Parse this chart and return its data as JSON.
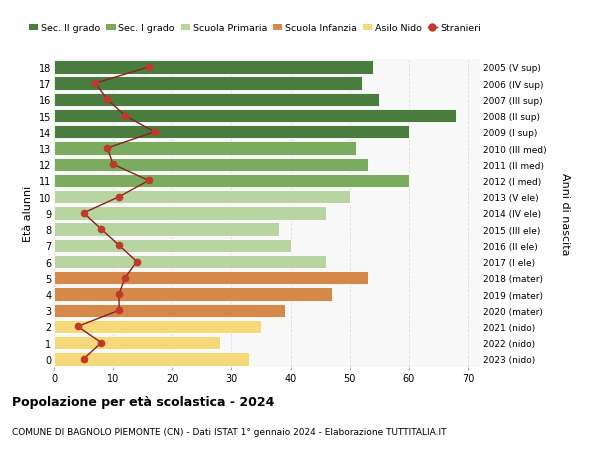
{
  "ages": [
    18,
    17,
    16,
    15,
    14,
    13,
    12,
    11,
    10,
    9,
    8,
    7,
    6,
    5,
    4,
    3,
    2,
    1,
    0
  ],
  "bar_values": [
    54,
    52,
    55,
    68,
    60,
    51,
    53,
    60,
    50,
    46,
    38,
    40,
    46,
    53,
    47,
    39,
    35,
    28,
    33
  ],
  "stranieri": [
    16,
    7,
    9,
    12,
    17,
    9,
    10,
    16,
    11,
    5,
    8,
    11,
    14,
    12,
    11,
    11,
    4,
    8,
    5
  ],
  "right_labels": [
    "2005 (V sup)",
    "2006 (IV sup)",
    "2007 (III sup)",
    "2008 (II sup)",
    "2009 (I sup)",
    "2010 (III med)",
    "2011 (II med)",
    "2012 (I med)",
    "2013 (V ele)",
    "2014 (IV ele)",
    "2015 (III ele)",
    "2016 (II ele)",
    "2017 (I ele)",
    "2018 (mater)",
    "2019 (mater)",
    "2020 (mater)",
    "2021 (nido)",
    "2022 (nido)",
    "2023 (nido)"
  ],
  "bar_colors": [
    "#4a7c3f",
    "#4a7c3f",
    "#4a7c3f",
    "#4a7c3f",
    "#4a7c3f",
    "#7aab5e",
    "#7aab5e",
    "#7aab5e",
    "#b8d4a0",
    "#b8d4a0",
    "#b8d4a0",
    "#b8d4a0",
    "#b8d4a0",
    "#d4884a",
    "#d4884a",
    "#d4884a",
    "#f5d87a",
    "#f5d87a",
    "#f5d87a"
  ],
  "legend_labels": [
    "Sec. II grado",
    "Sec. I grado",
    "Scuola Primaria",
    "Scuola Infanzia",
    "Asilo Nido",
    "Stranieri"
  ],
  "legend_colors": [
    "#4a7c3f",
    "#7aab5e",
    "#b8d4a0",
    "#d4884a",
    "#f5d87a",
    "#c0392b"
  ],
  "stranieri_color": "#c0392b",
  "stranieri_line_color": "#8b2020",
  "ylabel": "Età alunni",
  "right_ylabel": "Anni di nascita",
  "title": "Popolazione per età scolastica - 2024",
  "subtitle": "COMUNE DI BAGNOLO PIEMONTE (CN) - Dati ISTAT 1° gennaio 2024 - Elaborazione TUTTITALIA.IT",
  "xlim": [
    0,
    72
  ],
  "xticks": [
    0,
    10,
    20,
    30,
    40,
    50,
    60,
    70
  ],
  "background_color": "#ffffff",
  "plot_bg_color": "#f8f8f8",
  "grid_color": "#dddddd"
}
